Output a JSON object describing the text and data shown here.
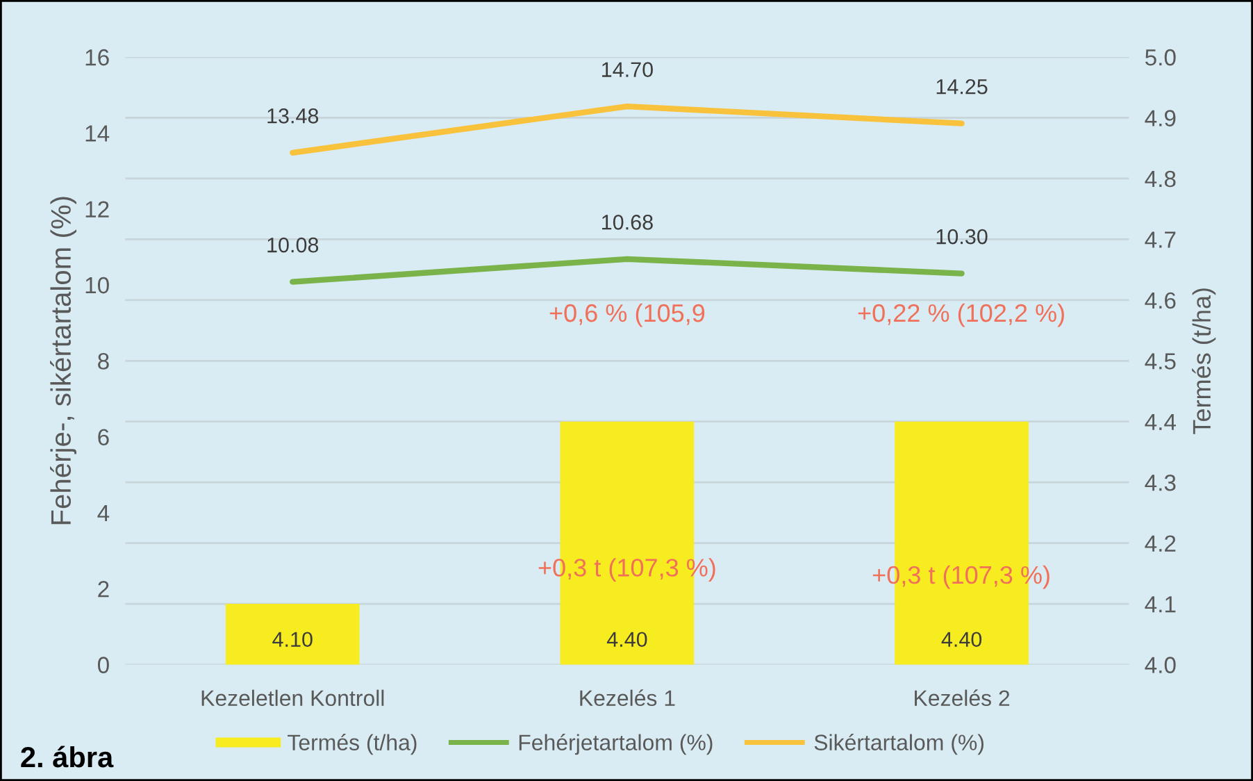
{
  "chart_data": {
    "type": "bar",
    "title": "2. ábra",
    "ylabel": "Fehérje-, sikértartalom (%)",
    "y2label": "Termés (t/ha)",
    "categories": [
      "Kezeletlen Kontroll",
      "Kezelés 1",
      "Kezelés 2"
    ],
    "series": [
      {
        "name": "Termés (t/ha)",
        "axis": "y2",
        "color": "#f7ec1f",
        "values": [
          4.1,
          4.4,
          4.4
        ],
        "value_labels": [
          "4.10",
          "4.40",
          "4.40"
        ]
      },
      {
        "name": "Fehérjetartalom (%)",
        "type": "line",
        "color": "#7ab34a",
        "values": [
          10.08,
          10.68,
          10.3
        ],
        "value_labels": [
          "10.08",
          "10.68",
          "10.30"
        ]
      },
      {
        "name": "Sikértartalom (%)",
        "type": "line",
        "color": "#f9c23c",
        "values": [
          13.48,
          14.7,
          14.25
        ],
        "value_labels": [
          "13.48",
          "14.70",
          "14.25"
        ]
      }
    ],
    "ylim": [
      0,
      16
    ],
    "yticks": [
      0,
      2,
      4,
      6,
      8,
      10,
      12,
      14,
      16
    ],
    "y2lim": [
      4.0,
      5.0
    ],
    "y2ticks": [
      {
        "value": 4,
        "label": "4.0"
      },
      4.1,
      4.2,
      4.3,
      4.4,
      4.5,
      4.6,
      4.7,
      4.8,
      4.9,
      {
        "value": 5,
        "label": "5.0"
      }
    ],
    "annotations": [
      "+0,6 % (105,9",
      "+0,22 % (102,2 %)",
      "+0,3 t (107,3 %)",
      "+0,3 t (107,3 %)"
    ],
    "grid": "y",
    "legend": "bottom",
    "marker": "none",
    "line_style": "solid"
  }
}
